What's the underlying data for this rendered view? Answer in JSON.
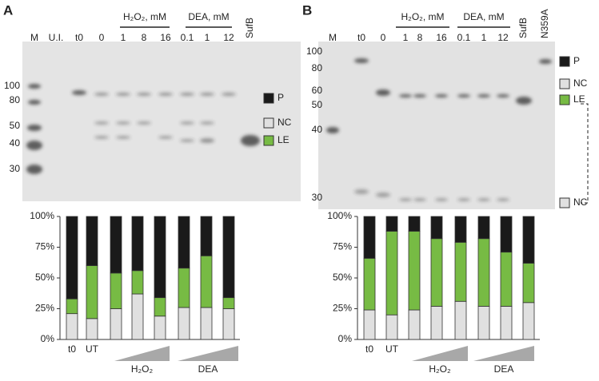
{
  "chart_data": [
    {
      "type": "stacked_bar",
      "categories": [
        "t0",
        "UT",
        null,
        null,
        null,
        null,
        null,
        null
      ],
      "group_labels": [
        "H₂O₂",
        "DEA"
      ],
      "series": [
        {
          "name": "NC",
          "color": "#e0e0e0",
          "values": [
            21,
            17,
            25,
            37,
            19,
            26,
            26,
            25
          ]
        },
        {
          "name": "LE",
          "color": "#77bb44",
          "values": [
            12,
            43,
            29,
            19,
            15,
            32,
            42,
            9
          ]
        },
        {
          "name": "P",
          "color": "#1a1a1a",
          "values": [
            67,
            40,
            46,
            44,
            66,
            42,
            32,
            66
          ]
        }
      ],
      "ylim": [
        0,
        100
      ],
      "yticks": [
        {
          "value": 0,
          "label": "0%"
        },
        {
          "value": 25,
          "label": "25%"
        },
        {
          "value": 50,
          "label": "50%"
        },
        {
          "value": 75,
          "label": "75%"
        },
        {
          "value": 100,
          "label": "100%"
        }
      ]
    },
    {
      "type": "stacked_bar",
      "categories": [
        "t0",
        "UT",
        null,
        null,
        null,
        null,
        null,
        null
      ],
      "group_labels": [
        "H₂O₂",
        "DEA"
      ],
      "series": [
        {
          "name": "NC",
          "color": "#e0e0e0",
          "values": [
            24,
            20,
            24,
            27,
            31,
            27,
            27,
            30
          ]
        },
        {
          "name": "LE",
          "color": "#77bb44",
          "values": [
            42,
            68,
            64,
            55,
            48,
            55,
            44,
            32
          ]
        },
        {
          "name": "P",
          "color": "#1a1a1a",
          "values": [
            34,
            12,
            12,
            18,
            21,
            18,
            29,
            38
          ]
        }
      ],
      "ylim": [
        0,
        100
      ],
      "yticks": [
        {
          "value": 0,
          "label": "0%"
        },
        {
          "value": 25,
          "label": "25%"
        },
        {
          "value": 50,
          "label": "50%"
        },
        {
          "value": 75,
          "label": "75%"
        },
        {
          "value": 100,
          "label": "100%"
        }
      ]
    }
  ],
  "gels": [
    {
      "panel": "A",
      "lanes": [
        "M",
        "U.I.",
        "t0",
        "0",
        "1",
        "8",
        "16",
        "0.1",
        "1",
        "12",
        "SufB"
      ],
      "headers": [
        "H₂O₂, mM",
        "DEA, mM"
      ],
      "markers": [
        "100",
        "80",
        "50",
        "40",
        "30"
      ]
    },
    {
      "panel": "B",
      "lanes": [
        "M",
        "t0",
        "0",
        "1",
        "8",
        "16",
        "0.1",
        "1",
        "12",
        "SufB",
        "N359A"
      ],
      "headers": [
        "H₂O₂, mM",
        "DEA, mM"
      ],
      "markers": [
        "100",
        "80",
        "60",
        "50",
        "40",
        "30"
      ]
    }
  ]
}
